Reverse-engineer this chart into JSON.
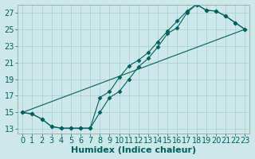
{
  "xlabel": "Humidex (Indice chaleur)",
  "background_color": "#cce8e8",
  "grid_color": "#aacccc",
  "line_color": "#006060",
  "xlim": [
    -0.5,
    23.5
  ],
  "ylim": [
    12.5,
    28.0
  ],
  "xticks": [
    0,
    1,
    2,
    3,
    4,
    5,
    6,
    7,
    8,
    9,
    10,
    11,
    12,
    13,
    14,
    15,
    16,
    17,
    18,
    19,
    20,
    21,
    22,
    23
  ],
  "yticks": [
    13,
    15,
    17,
    19,
    21,
    23,
    25,
    27
  ],
  "line1_x": [
    0,
    1,
    2,
    3,
    4,
    5,
    6,
    7,
    8,
    9,
    10,
    11,
    12,
    13,
    14,
    15,
    16,
    17,
    18,
    19,
    20,
    21,
    22,
    23
  ],
  "line1_y": [
    15.0,
    14.8,
    14.2,
    13.3,
    13.1,
    13.1,
    13.1,
    13.1,
    15.0,
    16.8,
    17.5,
    19.0,
    20.5,
    21.5,
    22.9,
    24.5,
    25.2,
    27.0,
    28.0,
    27.3,
    27.2,
    26.6,
    25.8,
    25.0
  ],
  "line2_x": [
    0,
    1,
    2,
    3,
    4,
    5,
    6,
    7,
    8,
    9,
    10,
    11,
    12,
    13,
    14,
    15,
    16,
    17,
    18,
    19,
    20,
    21,
    22,
    23
  ],
  "line2_y": [
    15.0,
    14.8,
    14.2,
    13.3,
    13.1,
    13.1,
    13.1,
    13.1,
    16.8,
    17.5,
    19.2,
    20.6,
    21.3,
    22.2,
    23.5,
    24.8,
    26.0,
    27.2,
    28.0,
    27.3,
    27.2,
    26.6,
    25.8,
    25.0
  ],
  "line3_x": [
    0,
    23
  ],
  "line3_y": [
    15.0,
    25.0
  ],
  "marker": "D",
  "marker_size": 2.5,
  "linewidth": 0.8,
  "font_size": 7,
  "xlabel_fontsize": 8
}
